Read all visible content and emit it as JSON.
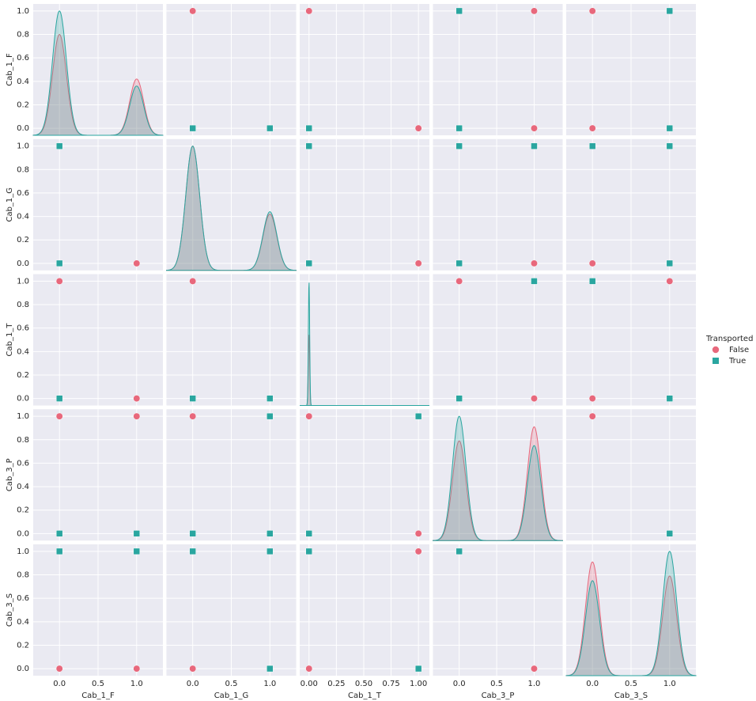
{
  "chart_data": {
    "type": "pairplot",
    "legend": {
      "title": "Transported",
      "entries": [
        {
          "name": "False",
          "color": "#e8687c",
          "marker": "circle"
        },
        {
          "name": "True",
          "color": "#2aa6a0",
          "marker": "square"
        }
      ]
    },
    "variables": [
      {
        "name": "Cab_1_F",
        "xlim": [
          -0.34,
          1.34
        ],
        "ylim": [
          -0.06,
          1.06
        ],
        "xticks": [
          {
            "value": 0,
            "label": "0.0"
          },
          {
            "value": 0.5,
            "label": "0.5"
          },
          {
            "value": 1,
            "label": "1.0"
          }
        ],
        "yticks": [
          {
            "value": 0,
            "label": "0.0"
          },
          {
            "value": 0.2,
            "label": "0.2"
          },
          {
            "value": 0.4,
            "label": "0.4"
          },
          {
            "value": 0.6,
            "label": "0.6"
          },
          {
            "value": 0.8,
            "label": "0.8"
          },
          {
            "value": 1,
            "label": "1.0"
          }
        ]
      },
      {
        "name": "Cab_1_G",
        "xlim": [
          -0.34,
          1.34
        ],
        "ylim": [
          -0.06,
          1.06
        ],
        "xticks": [
          {
            "value": 0,
            "label": "0.0"
          },
          {
            "value": 0.5,
            "label": "0.5"
          },
          {
            "value": 1,
            "label": "1.0"
          }
        ],
        "yticks": [
          {
            "value": 0,
            "label": "0.0"
          },
          {
            "value": 0.2,
            "label": "0.2"
          },
          {
            "value": 0.4,
            "label": "0.4"
          },
          {
            "value": 0.6,
            "label": "0.6"
          },
          {
            "value": 0.8,
            "label": "0.8"
          },
          {
            "value": 1,
            "label": "1.0"
          }
        ]
      },
      {
        "name": "Cab_1_T",
        "xlim": [
          -0.085,
          1.1
        ],
        "ylim": [
          -0.06,
          1.06
        ],
        "xticks": [
          {
            "value": 0,
            "label": "0.00"
          },
          {
            "value": 0.25,
            "label": "0.25"
          },
          {
            "value": 0.5,
            "label": "0.50"
          },
          {
            "value": 0.75,
            "label": "0.75"
          },
          {
            "value": 1,
            "label": "1.00"
          }
        ],
        "yticks": [
          {
            "value": 0,
            "label": "0.0"
          },
          {
            "value": 0.2,
            "label": "0.2"
          },
          {
            "value": 0.4,
            "label": "0.4"
          },
          {
            "value": 0.6,
            "label": "0.6"
          },
          {
            "value": 0.8,
            "label": "0.8"
          },
          {
            "value": 1,
            "label": "1.0"
          }
        ]
      },
      {
        "name": "Cab_3_P",
        "xlim": [
          -0.35,
          1.38
        ],
        "ylim": [
          -0.06,
          1.06
        ],
        "xticks": [
          {
            "value": 0,
            "label": "0.0"
          },
          {
            "value": 0.5,
            "label": "0.5"
          },
          {
            "value": 1,
            "label": "1.0"
          }
        ],
        "yticks": [
          {
            "value": 0,
            "label": "0.0"
          },
          {
            "value": 0.2,
            "label": "0.2"
          },
          {
            "value": 0.4,
            "label": "0.4"
          },
          {
            "value": 0.6,
            "label": "0.6"
          },
          {
            "value": 0.8,
            "label": "0.8"
          },
          {
            "value": 1,
            "label": "1.0"
          }
        ]
      },
      {
        "name": "Cab_3_S",
        "xlim": [
          -0.34,
          1.34
        ],
        "ylim": [
          -0.06,
          1.06
        ],
        "xticks": [
          {
            "value": 0,
            "label": "0.0"
          },
          {
            "value": 0.5,
            "label": "0.5"
          },
          {
            "value": 1,
            "label": "1.0"
          }
        ],
        "yticks": [
          {
            "value": 0,
            "label": "0.0"
          },
          {
            "value": 0.2,
            "label": "0.2"
          },
          {
            "value": 0.4,
            "label": "0.4"
          },
          {
            "value": 0.6,
            "label": "0.6"
          },
          {
            "value": 0.8,
            "label": "0.8"
          },
          {
            "value": 1,
            "label": "1.0"
          }
        ]
      }
    ],
    "panels": [
      [
        {
          "kde": [
            {
              "bandwidth": 0.09,
              "peaks_x": [
                0,
                1
              ],
              "peaks_y": [
                0.8,
                0.42
              ]
            },
            {
              "bandwidth": 0.09,
              "peaks_x": [
                0,
                1
              ],
              "peaks_y": [
                1.0,
                0.36
              ]
            }
          ]
        },
        {
          "series": [
            {
              "x": [
                0
              ],
              "y": [
                1
              ]
            },
            {
              "x": [
                0,
                1
              ],
              "y": [
                0,
                0
              ]
            }
          ]
        },
        {
          "series": [
            {
              "x": [
                0,
                1
              ],
              "y": [
                1,
                0
              ]
            },
            {
              "x": [
                0
              ],
              "y": [
                0
              ]
            }
          ]
        },
        {
          "series": [
            {
              "x": [
                1,
                1
              ],
              "y": [
                1,
                0
              ]
            },
            {
              "x": [
                0,
                0
              ],
              "y": [
                1,
                0
              ]
            }
          ]
        },
        {
          "series": [
            {
              "x": [
                0,
                0
              ],
              "y": [
                1,
                0
              ]
            },
            {
              "x": [
                1,
                1
              ],
              "y": [
                1,
                0
              ]
            }
          ]
        }
      ],
      [
        {
          "series": [
            {
              "x": [
                1
              ],
              "y": [
                0
              ]
            },
            {
              "x": [
                0,
                0
              ],
              "y": [
                1,
                0
              ]
            }
          ]
        },
        {
          "kde": [
            {
              "bandwidth": 0.09,
              "peaks_x": [
                0,
                1
              ],
              "peaks_y": [
                1.0,
                0.42
              ]
            },
            {
              "bandwidth": 0.09,
              "peaks_x": [
                0,
                1
              ],
              "peaks_y": [
                1.0,
                0.44
              ]
            }
          ]
        },
        {
          "series": [
            {
              "x": [
                1
              ],
              "y": [
                0
              ]
            },
            {
              "x": [
                0,
                0
              ],
              "y": [
                1,
                0
              ]
            }
          ]
        },
        {
          "series": [
            {
              "x": [
                1
              ],
              "y": [
                0
              ]
            },
            {
              "x": [
                0,
                1,
                0
              ],
              "y": [
                1,
                1,
                0
              ]
            }
          ]
        },
        {
          "series": [
            {
              "x": [
                0
              ],
              "y": [
                0
              ]
            },
            {
              "x": [
                0,
                1,
                1
              ],
              "y": [
                1,
                1,
                0
              ]
            }
          ]
        }
      ],
      [
        {
          "series": [
            {
              "x": [
                0,
                1
              ],
              "y": [
                1,
                0
              ]
            },
            {
              "x": [
                0
              ],
              "y": [
                0
              ]
            }
          ]
        },
        {
          "series": [
            {
              "x": [
                0
              ],
              "y": [
                1
              ]
            },
            {
              "x": [
                0,
                1
              ],
              "y": [
                0,
                0
              ]
            }
          ]
        },
        {
          "kde": [
            {
              "bandwidth": 0.006,
              "peaks_x": [
                0
              ],
              "peaks_y": [
                0.55
              ]
            },
            {
              "bandwidth": 0.006,
              "peaks_x": [
                0
              ],
              "peaks_y": [
                1.0
              ]
            }
          ]
        },
        {
          "series": [
            {
              "x": [
                0,
                1
              ],
              "y": [
                1,
                0
              ]
            },
            {
              "x": [
                1,
                0
              ],
              "y": [
                1,
                0
              ]
            }
          ]
        },
        {
          "series": [
            {
              "x": [
                1,
                0
              ],
              "y": [
                1,
                0
              ]
            },
            {
              "x": [
                0,
                1
              ],
              "y": [
                1,
                0
              ]
            }
          ]
        }
      ],
      [
        {
          "series": [
            {
              "x": [
                0,
                1
              ],
              "y": [
                1,
                1
              ]
            },
            {
              "x": [
                0,
                1
              ],
              "y": [
                0,
                0
              ]
            }
          ]
        },
        {
          "series": [
            {
              "x": [
                0
              ],
              "y": [
                1
              ]
            },
            {
              "x": [
                1,
                0,
                1
              ],
              "y": [
                1,
                0,
                0
              ]
            }
          ]
        },
        {
          "series": [
            {
              "x": [
                0,
                1
              ],
              "y": [
                1,
                0
              ]
            },
            {
              "x": [
                1,
                0
              ],
              "y": [
                1,
                0
              ]
            }
          ]
        },
        {
          "kde": [
            {
              "bandwidth": 0.09,
              "peaks_x": [
                0,
                1
              ],
              "peaks_y": [
                0.79,
                0.91
              ]
            },
            {
              "bandwidth": 0.09,
              "peaks_x": [
                0,
                1
              ],
              "peaks_y": [
                1.0,
                0.75
              ]
            }
          ]
        },
        {
          "series": [
            {
              "x": [
                0
              ],
              "y": [
                1
              ]
            },
            {
              "x": [
                1
              ],
              "y": [
                0
              ]
            }
          ]
        }
      ],
      [
        {
          "series": [
            {
              "x": [
                0,
                1
              ],
              "y": [
                0,
                0
              ]
            },
            {
              "x": [
                0,
                1
              ],
              "y": [
                1,
                1
              ]
            }
          ]
        },
        {
          "series": [
            {
              "x": [
                0
              ],
              "y": [
                0
              ]
            },
            {
              "x": [
                0,
                1,
                1
              ],
              "y": [
                1,
                1,
                0
              ]
            }
          ]
        },
        {
          "series": [
            {
              "x": [
                1,
                0
              ],
              "y": [
                1,
                0
              ]
            },
            {
              "x": [
                0,
                1
              ],
              "y": [
                1,
                0
              ]
            }
          ]
        },
        {
          "series": [
            {
              "x": [
                1
              ],
              "y": [
                0
              ]
            },
            {
              "x": [
                0
              ],
              "y": [
                1
              ]
            }
          ]
        },
        {
          "kde": [
            {
              "bandwidth": 0.09,
              "peaks_x": [
                0,
                1
              ],
              "peaks_y": [
                0.91,
                0.79
              ]
            },
            {
              "bandwidth": 0.09,
              "peaks_x": [
                0,
                1
              ],
              "peaks_y": [
                0.75,
                1.0
              ]
            }
          ]
        }
      ]
    ]
  }
}
